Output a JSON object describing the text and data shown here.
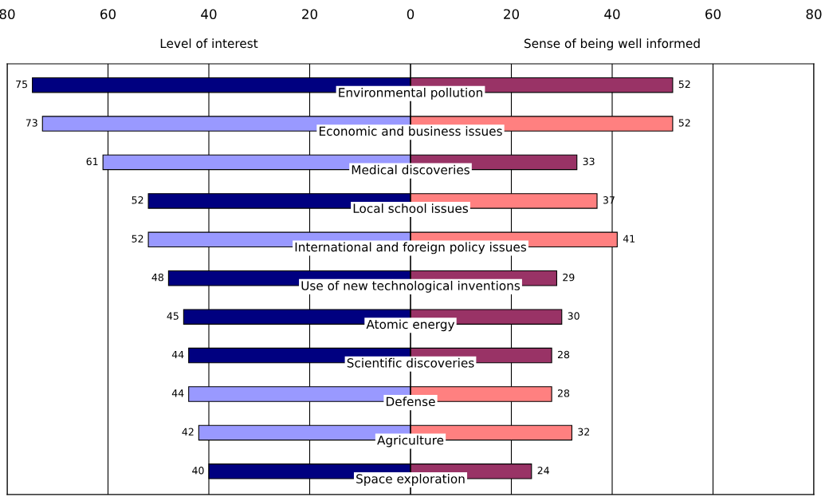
{
  "chart_data": {
    "type": "bar",
    "orientation": "horizontal",
    "categories": [
      "Environmental pollution",
      "Economic and business issues",
      "Medical discoveries",
      "Local school issues",
      "International and foreign policy issues",
      "Use of new technological inventions",
      "Atomic energy",
      "Scientific discoveries",
      "Defense",
      "Agriculture",
      "Space exploration"
    ],
    "series": [
      {
        "name": "Level of interest",
        "values": [
          75,
          73,
          61,
          52,
          52,
          48,
          45,
          44,
          44,
          42,
          40
        ],
        "base": [
          -75,
          -73,
          -61,
          -52,
          -52,
          -48,
          -45,
          -44,
          -44,
          -42,
          -40
        ],
        "colors": [
          "#000080",
          "#9999ff",
          "#9999ff",
          "#000080",
          "#9999ff",
          "#000080",
          "#000080",
          "#000080",
          "#9999ff",
          "#9999ff",
          "#000080"
        ]
      },
      {
        "name": "Sense of being well informed",
        "values": [
          52,
          52,
          33,
          37,
          41,
          29,
          30,
          28,
          28,
          32,
          24
        ],
        "colors": [
          "#993366",
          "#ff8080",
          "#993366",
          "#ff8080",
          "#ff8080",
          "#993366",
          "#993366",
          "#993366",
          "#ff8080",
          "#ff8080",
          "#993366"
        ]
      }
    ],
    "xlim": [
      -80,
      80
    ],
    "xticks": [
      {
        "value": -80,
        "label": "80"
      },
      {
        "value": -60,
        "label": "60"
      },
      {
        "value": -40,
        "label": "40"
      },
      {
        "value": -20,
        "label": "20"
      },
      0,
      20,
      40,
      60,
      80
    ],
    "grid": "x",
    "data_labels": true
  }
}
